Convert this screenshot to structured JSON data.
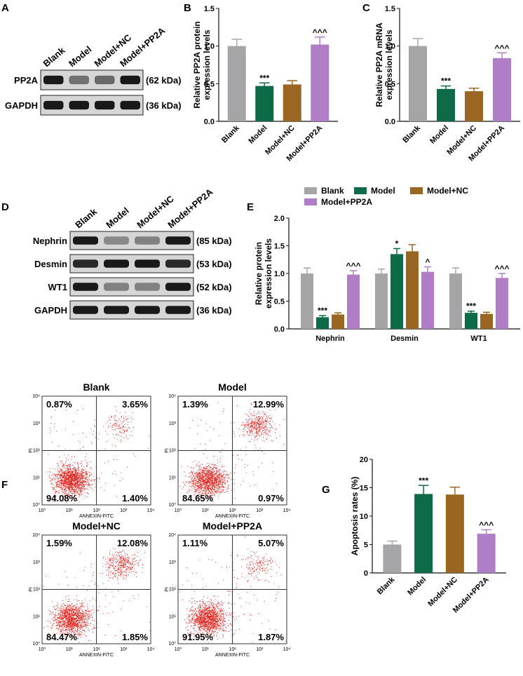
{
  "colors": {
    "blank": "#a5a5a7",
    "model": "#0e6b47",
    "model_nc": "#9b6622",
    "model_pp2a": "#b07ec6",
    "dot": "#e0241f"
  },
  "panels": {
    "A": {
      "letter": "A",
      "lanes": [
        "Blank",
        "Model",
        "Model+NC",
        "Model+PP2A"
      ],
      "rows": [
        {
          "name": "PP2A",
          "kda": "(62 kDa)",
          "intensity": [
            1.0,
            0.45,
            0.5,
            1.0
          ]
        },
        {
          "name": "GAPDH",
          "kda": "(36 kDa)",
          "intensity": [
            1.0,
            1.0,
            1.0,
            1.0
          ]
        }
      ]
    },
    "D": {
      "letter": "D",
      "lanes": [
        "Blank",
        "Model",
        "Model+NC",
        "Model+PP2A"
      ],
      "rows": [
        {
          "name": "Nephrin",
          "kda": "(85 kDa)",
          "intensity": [
            1.0,
            0.3,
            0.35,
            1.0
          ]
        },
        {
          "name": "Desmin",
          "kda": "(53 kDa)",
          "intensity": [
            0.9,
            1.0,
            1.0,
            0.9
          ]
        },
        {
          "name": "WT1",
          "kda": "(52 kDa)",
          "intensity": [
            1.0,
            0.35,
            0.35,
            1.0
          ]
        },
        {
          "name": "GAPDH",
          "kda": "(36 kDa)",
          "intensity": [
            1.0,
            1.0,
            1.0,
            1.0
          ]
        }
      ]
    },
    "F": {
      "letter": "F",
      "xlabel": "ANNEXIN-FITC",
      "ylabel": "PI",
      "ticks": [
        "10",
        "1",
        "2",
        "3",
        "4"
      ],
      "plots": [
        {
          "title": "Blank",
          "ul": "0.87%",
          "ur": "3.65%",
          "ll": "94.08%",
          "lr": "1.40%"
        },
        {
          "title": "Model",
          "ul": "1.39%",
          "ur": "12.99%",
          "ll": "84.65%",
          "lr": "0.97%"
        },
        {
          "title": "Model+NC",
          "ul": "1.59%",
          "ur": "12.08%",
          "ll": "84.47%",
          "lr": "1.85%"
        },
        {
          "title": "Model+PP2A",
          "ul": "1.11%",
          "ur": "5.07%",
          "ll": "91.95%",
          "lr": "1.87%"
        }
      ]
    }
  },
  "chart_data": [
    {
      "id": "B",
      "letter": "B",
      "type": "bar",
      "ylabel": "Relative PP2A protein expression levels",
      "ylabel_lines": [
        "Relative PP2A protein",
        "expression levels"
      ],
      "ylim": [
        0,
        1.5
      ],
      "yticks": [
        "0.0",
        "0.5",
        "1.0",
        "1.5"
      ],
      "categories": [
        "Blank",
        "Model",
        "Model+NC",
        "Model+PP2A"
      ],
      "values": [
        1.0,
        0.47,
        0.49,
        1.02
      ],
      "errors": [
        0.09,
        0.04,
        0.05,
        0.1
      ],
      "annotations": [
        "",
        "***",
        "",
        "^^^"
      ]
    },
    {
      "id": "C",
      "letter": "C",
      "type": "bar",
      "ylabel": "Relative PP2A mRNA expression levels",
      "ylabel_lines": [
        "Relative PP2A mRNA",
        "expression levels"
      ],
      "ylim": [
        0,
        1.5
      ],
      "yticks": [
        "0.0",
        "0.5",
        "1.0",
        "1.5"
      ],
      "categories": [
        "Blank",
        "Model",
        "Model+NC",
        "Model+PP2A"
      ],
      "values": [
        1.0,
        0.43,
        0.4,
        0.84
      ],
      "errors": [
        0.1,
        0.04,
        0.04,
        0.07
      ],
      "annotations": [
        "",
        "***",
        "",
        "^^^"
      ]
    },
    {
      "id": "E",
      "letter": "E",
      "type": "bar",
      "ylabel": "Relative protein expression levels",
      "ylabel_lines": [
        "Relative protein",
        "expression levels"
      ],
      "ylim": [
        0,
        2.0
      ],
      "yticks": [
        "0.0",
        "0.5",
        "1.0",
        "1.5",
        "2.0"
      ],
      "categories": [
        "Nephrin",
        "Desmin",
        "WT1"
      ],
      "legend": [
        "Blank",
        "Model",
        "Model+NC",
        "Model+PP2A"
      ],
      "series": [
        {
          "name": "Blank",
          "values": [
            1.0,
            1.0,
            1.0
          ],
          "errors": [
            0.1,
            0.08,
            0.1
          ],
          "annotations": [
            "",
            "",
            ""
          ]
        },
        {
          "name": "Model",
          "values": [
            0.21,
            1.35,
            0.29
          ],
          "errors": [
            0.03,
            0.1,
            0.03
          ],
          "annotations": [
            "***",
            "*",
            "***"
          ]
        },
        {
          "name": "Model+NC",
          "values": [
            0.26,
            1.4,
            0.27
          ],
          "errors": [
            0.03,
            0.12,
            0.03
          ],
          "annotations": [
            "",
            "",
            ""
          ]
        },
        {
          "name": "Model+PP2A",
          "values": [
            0.98,
            1.03,
            0.92
          ],
          "errors": [
            0.07,
            0.09,
            0.08
          ],
          "annotations": [
            "^^^",
            "^",
            "^^^"
          ]
        }
      ]
    },
    {
      "id": "G",
      "letter": "G",
      "type": "bar",
      "ylabel": "Apoptosis rates (%)",
      "ylabel_lines": [
        "Apoptosis rates (%)"
      ],
      "ylim": [
        0,
        20
      ],
      "yticks": [
        "0",
        "5",
        "10",
        "15",
        "20"
      ],
      "categories": [
        "Blank",
        "Model",
        "Model+NC",
        "Model+PP2A"
      ],
      "values": [
        5.0,
        13.9,
        13.8,
        6.9
      ],
      "errors": [
        0.6,
        1.5,
        1.3,
        0.7
      ],
      "annotations": [
        "",
        "***",
        "",
        "^^^"
      ]
    }
  ]
}
